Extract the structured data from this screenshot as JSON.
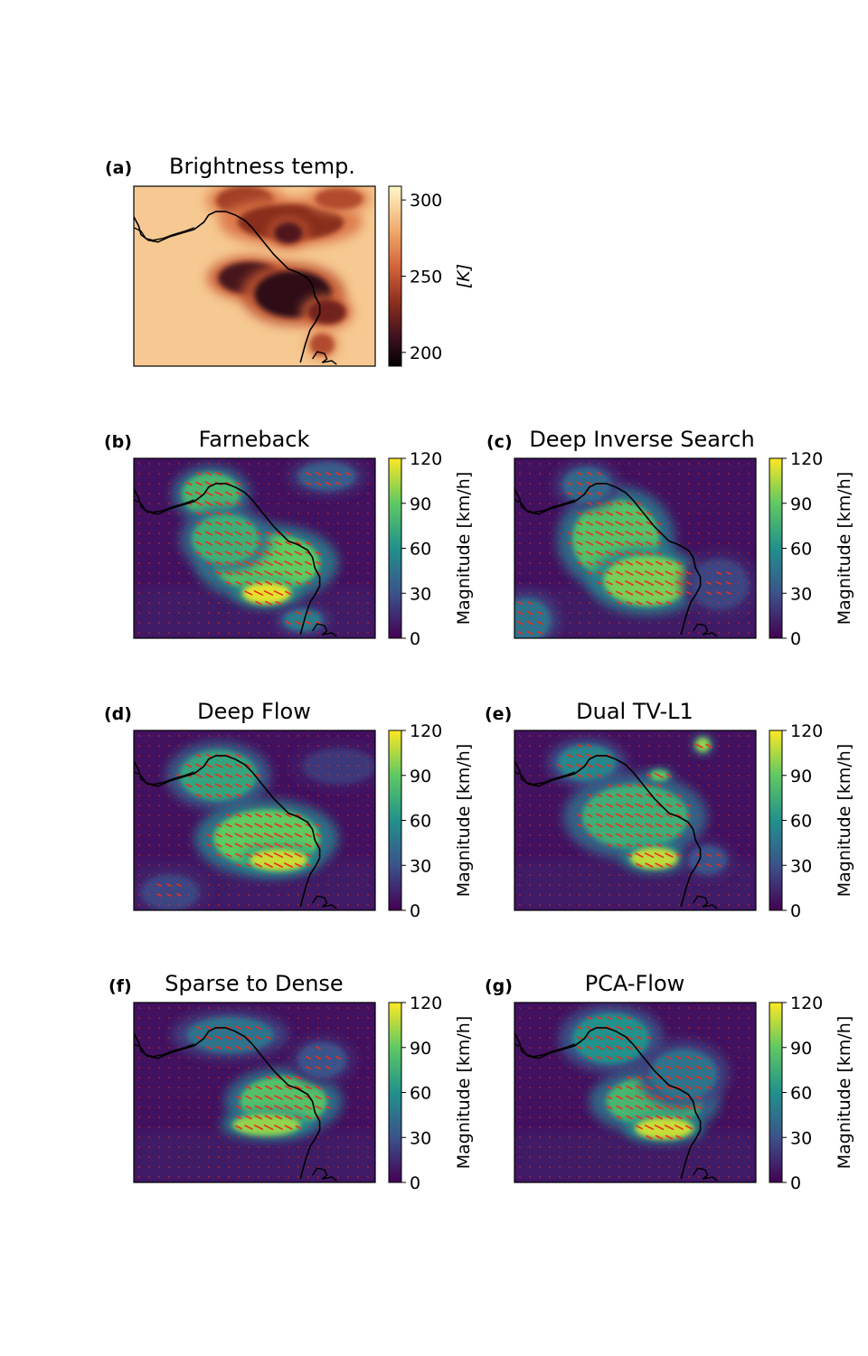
{
  "chart_data": [
    {
      "id": "a",
      "type": "heatmap",
      "letter": "(a)",
      "title": "Brightness temp.",
      "colormap": "inferno-light",
      "colorbar": {
        "label": "[K]",
        "ticks": [
          "300",
          "250",
          "200"
        ],
        "tick_values": [
          300,
          250,
          200
        ],
        "range": [
          191,
          309
        ]
      },
      "clouds": [
        {
          "cx": 0.46,
          "cy": 0.08,
          "rx": 0.12,
          "ry": 0.08,
          "value": 240
        },
        {
          "cx": 0.65,
          "cy": 0.2,
          "rx": 0.22,
          "ry": 0.1,
          "value": 232
        },
        {
          "cx": 0.85,
          "cy": 0.07,
          "rx": 0.1,
          "ry": 0.06,
          "value": 245
        },
        {
          "cx": 0.64,
          "cy": 0.26,
          "rx": 0.06,
          "ry": 0.06,
          "value": 215
        },
        {
          "cx": 0.48,
          "cy": 0.51,
          "rx": 0.13,
          "ry": 0.09,
          "value": 212
        },
        {
          "cx": 0.66,
          "cy": 0.6,
          "rx": 0.16,
          "ry": 0.13,
          "value": 205
        },
        {
          "cx": 0.8,
          "cy": 0.7,
          "rx": 0.08,
          "ry": 0.07,
          "value": 225
        },
        {
          "cx": 0.78,
          "cy": 0.88,
          "rx": 0.05,
          "ry": 0.06,
          "value": 245
        }
      ]
    },
    {
      "id": "b",
      "type": "heatmap",
      "letter": "(b)",
      "title": "Farneback",
      "colormap": "viridis",
      "colorbar": {
        "label": "Magnitude [km/h]",
        "ticks": [
          "120",
          "90",
          "60",
          "30",
          "0"
        ],
        "tick_values": [
          120,
          90,
          60,
          30,
          0
        ],
        "range": [
          0,
          120
        ]
      },
      "blobs": [
        {
          "cx": 0.32,
          "cy": 0.2,
          "rx": 0.12,
          "ry": 0.12,
          "value": 80
        },
        {
          "cx": 0.55,
          "cy": 0.58,
          "rx": 0.22,
          "ry": 0.16,
          "value": 90
        },
        {
          "cx": 0.38,
          "cy": 0.45,
          "rx": 0.14,
          "ry": 0.14,
          "value": 75
        },
        {
          "cx": 0.55,
          "cy": 0.75,
          "rx": 0.1,
          "ry": 0.06,
          "value": 115
        },
        {
          "cx": 0.8,
          "cy": 0.1,
          "rx": 0.12,
          "ry": 0.08,
          "value": 35
        },
        {
          "cx": 0.7,
          "cy": 0.9,
          "rx": 0.08,
          "ry": 0.06,
          "value": 50
        }
      ]
    },
    {
      "id": "c",
      "type": "heatmap",
      "letter": "(c)",
      "title": "Deep Inverse Search",
      "colormap": "viridis",
      "colorbar": {
        "label": "Magnitude [km/h]",
        "ticks": [
          "120",
          "90",
          "60",
          "30",
          "0"
        ],
        "tick_values": [
          120,
          90,
          60,
          30,
          0
        ],
        "range": [
          0,
          120
        ]
      },
      "blobs": [
        {
          "cx": 0.42,
          "cy": 0.45,
          "rx": 0.18,
          "ry": 0.22,
          "value": 85
        },
        {
          "cx": 0.55,
          "cy": 0.68,
          "rx": 0.18,
          "ry": 0.14,
          "value": 95
        },
        {
          "cx": 0.3,
          "cy": 0.15,
          "rx": 0.1,
          "ry": 0.1,
          "value": 40
        },
        {
          "cx": 0.05,
          "cy": 0.9,
          "rx": 0.1,
          "ry": 0.12,
          "value": 45
        },
        {
          "cx": 0.85,
          "cy": 0.7,
          "rx": 0.12,
          "ry": 0.14,
          "value": 25
        }
      ]
    },
    {
      "id": "d",
      "type": "heatmap",
      "letter": "(d)",
      "title": "Deep Flow",
      "colormap": "viridis",
      "colorbar": {
        "label": "Magnitude [km/h]",
        "ticks": [
          "120",
          "90",
          "60",
          "30",
          "0"
        ],
        "tick_values": [
          120,
          90,
          60,
          30,
          0
        ],
        "range": [
          0,
          120
        ]
      },
      "blobs": [
        {
          "cx": 0.35,
          "cy": 0.25,
          "rx": 0.16,
          "ry": 0.14,
          "value": 70
        },
        {
          "cx": 0.55,
          "cy": 0.6,
          "rx": 0.22,
          "ry": 0.16,
          "value": 90
        },
        {
          "cx": 0.6,
          "cy": 0.72,
          "rx": 0.12,
          "ry": 0.06,
          "value": 110
        },
        {
          "cx": 0.15,
          "cy": 0.9,
          "rx": 0.12,
          "ry": 0.1,
          "value": 25
        },
        {
          "cx": 0.85,
          "cy": 0.2,
          "rx": 0.15,
          "ry": 0.1,
          "value": 20
        }
      ]
    },
    {
      "id": "e",
      "type": "heatmap",
      "letter": "(e)",
      "title": "Dual TV-L1",
      "colormap": "viridis",
      "colorbar": {
        "label": "Magnitude [km/h]",
        "ticks": [
          "120",
          "90",
          "60",
          "30",
          "0"
        ],
        "tick_values": [
          120,
          90,
          60,
          30,
          0
        ],
        "range": [
          0,
          120
        ]
      },
      "blobs": [
        {
          "cx": 0.3,
          "cy": 0.18,
          "rx": 0.12,
          "ry": 0.1,
          "value": 55
        },
        {
          "cx": 0.5,
          "cy": 0.48,
          "rx": 0.22,
          "ry": 0.18,
          "value": 75
        },
        {
          "cx": 0.58,
          "cy": 0.71,
          "rx": 0.1,
          "ry": 0.06,
          "value": 108
        },
        {
          "cx": 0.78,
          "cy": 0.08,
          "rx": 0.03,
          "ry": 0.04,
          "value": 100
        },
        {
          "cx": 0.6,
          "cy": 0.25,
          "rx": 0.04,
          "ry": 0.03,
          "value": 90
        },
        {
          "cx": 0.8,
          "cy": 0.72,
          "rx": 0.08,
          "ry": 0.08,
          "value": 30
        }
      ]
    },
    {
      "id": "f",
      "type": "heatmap",
      "letter": "(f)",
      "title": "Sparse to Dense",
      "colormap": "viridis",
      "colorbar": {
        "label": "Magnitude [km/h]",
        "ticks": [
          "120",
          "90",
          "60",
          "30",
          "0"
        ],
        "tick_values": [
          120,
          90,
          60,
          30,
          0
        ],
        "range": [
          0,
          120
        ]
      },
      "blobs": [
        {
          "cx": 0.4,
          "cy": 0.18,
          "rx": 0.18,
          "ry": 0.1,
          "value": 45
        },
        {
          "cx": 0.62,
          "cy": 0.55,
          "rx": 0.18,
          "ry": 0.14,
          "value": 85
        },
        {
          "cx": 0.55,
          "cy": 0.68,
          "rx": 0.14,
          "ry": 0.06,
          "value": 100
        },
        {
          "cx": 0.78,
          "cy": 0.32,
          "rx": 0.1,
          "ry": 0.1,
          "value": 30
        }
      ]
    },
    {
      "id": "g",
      "type": "heatmap",
      "letter": "(g)",
      "title": "PCA-Flow",
      "colormap": "viridis",
      "colorbar": {
        "label": "Magnitude [km/h]",
        "ticks": [
          "120",
          "90",
          "60",
          "30",
          "0"
        ],
        "tick_values": [
          120,
          90,
          60,
          30,
          0
        ],
        "range": [
          0,
          120
        ]
      },
      "blobs": [
        {
          "cx": 0.4,
          "cy": 0.2,
          "rx": 0.16,
          "ry": 0.14,
          "value": 60
        },
        {
          "cx": 0.58,
          "cy": 0.55,
          "rx": 0.2,
          "ry": 0.14,
          "value": 80
        },
        {
          "cx": 0.62,
          "cy": 0.7,
          "rx": 0.12,
          "ry": 0.06,
          "value": 110
        },
        {
          "cx": 0.7,
          "cy": 0.4,
          "rx": 0.14,
          "ry": 0.14,
          "value": 45
        }
      ]
    }
  ]
}
